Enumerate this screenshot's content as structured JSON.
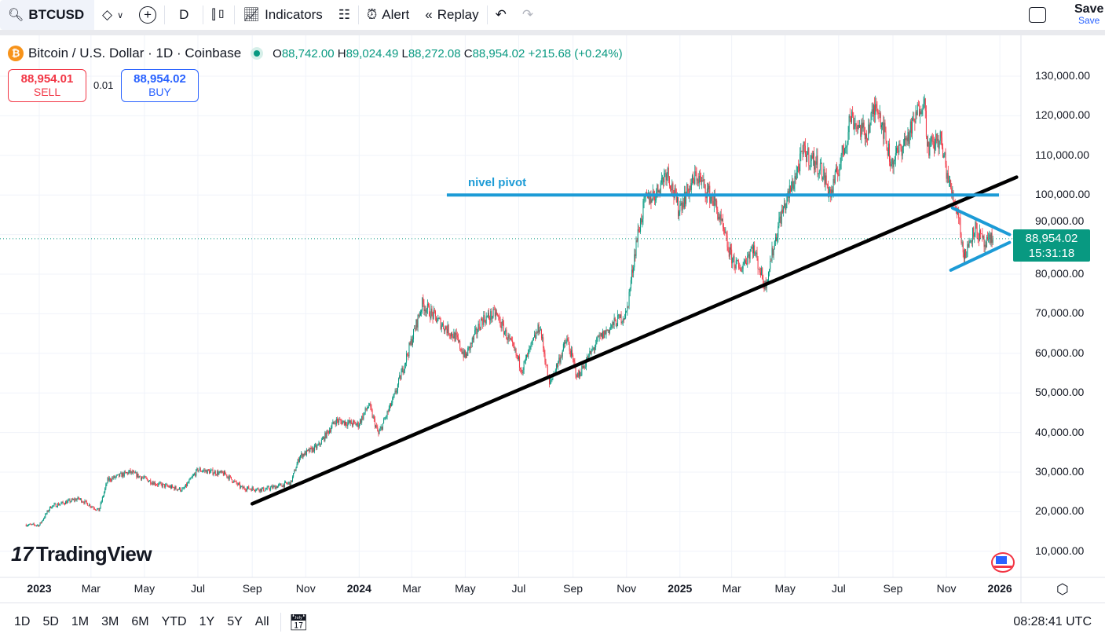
{
  "toolbar": {
    "symbol": "BTCUSD",
    "interval": "D",
    "indicators": "Indicators",
    "alert": "Alert",
    "replay": "Replay",
    "save": "Save",
    "save_sub": "Save"
  },
  "legend": {
    "title": "Bitcoin / U.S. Dollar · 1D · Coinbase",
    "o_label": "O",
    "o": "88,742.00",
    "h_label": "H",
    "h": "89,024.49",
    "l_label": "L",
    "l": "88,272.08",
    "c_label": "C",
    "c": "88,954.02",
    "change": "+215.68 (+0.24%)"
  },
  "trade": {
    "sell_price": "88,954.01",
    "sell": "SELL",
    "spread": "0.01",
    "buy_price": "88,954.02",
    "buy": "BUY"
  },
  "price_label": {
    "price": "88,954.02",
    "countdown": "15:31:18"
  },
  "bottom": {
    "ranges": [
      "1D",
      "5D",
      "1M",
      "3M",
      "6M",
      "YTD",
      "1Y",
      "5Y",
      "All"
    ],
    "clock": "08:28:41 UTC"
  },
  "logo": "TradingView",
  "colors": {
    "up": "#089981",
    "down": "#f23645",
    "trend": "#000000",
    "pivot": "#1c9bd6"
  },
  "chart_data": {
    "type": "candlestick",
    "title": "Bitcoin / U.S. Dollar · 1D · Coinbase",
    "ylim": [
      0,
      135000
    ],
    "yticks": [
      "130,000.00",
      "120,000.00",
      "110,000.00",
      "100,000.00",
      "90,000.00",
      "80,000.00",
      "70,000.00",
      "60,000.00",
      "50,000.00",
      "40,000.00",
      "30,000.00",
      "20,000.00",
      "10,000.00"
    ],
    "xticks": [
      {
        "label": "2023",
        "date": "2023-01-01",
        "bold": true
      },
      {
        "label": "Mar",
        "date": "2023-03-01"
      },
      {
        "label": "May",
        "date": "2023-05-01"
      },
      {
        "label": "Jul",
        "date": "2023-07-01"
      },
      {
        "label": "Sep",
        "date": "2023-09-01"
      },
      {
        "label": "Nov",
        "date": "2023-11-01"
      },
      {
        "label": "2024",
        "date": "2024-01-01",
        "bold": true
      },
      {
        "label": "Mar",
        "date": "2024-03-01"
      },
      {
        "label": "May",
        "date": "2024-05-01"
      },
      {
        "label": "Jul",
        "date": "2024-07-01"
      },
      {
        "label": "Sep",
        "date": "2024-09-01"
      },
      {
        "label": "Nov",
        "date": "2024-11-01"
      },
      {
        "label": "2025",
        "date": "2025-01-01",
        "bold": true
      },
      {
        "label": "Mar",
        "date": "2025-03-01"
      },
      {
        "label": "May",
        "date": "2025-05-01"
      },
      {
        "label": "Jul",
        "date": "2025-07-01"
      },
      {
        "label": "Sep",
        "date": "2025-09-01"
      },
      {
        "label": "Nov",
        "date": "2025-11-01"
      },
      {
        "label": "2026",
        "date": "2026-01-01",
        "bold": true
      }
    ],
    "price_path": [
      [
        "2022-12-17",
        16700
      ],
      [
        "2023-01-01",
        16600
      ],
      [
        "2023-01-14",
        21300
      ],
      [
        "2023-02-15",
        23300
      ],
      [
        "2023-03-10",
        20300
      ],
      [
        "2023-03-20",
        28000
      ],
      [
        "2023-04-14",
        30000
      ],
      [
        "2023-05-15",
        27000
      ],
      [
        "2023-06-14",
        25500
      ],
      [
        "2023-07-01",
        30600
      ],
      [
        "2023-08-01",
        29500
      ],
      [
        "2023-08-20",
        26000
      ],
      [
        "2023-09-15",
        25600
      ],
      [
        "2023-10-15",
        27300
      ],
      [
        "2023-10-25",
        34000
      ],
      [
        "2023-11-15",
        36500
      ],
      [
        "2023-12-05",
        43000
      ],
      [
        "2023-12-31",
        42000
      ],
      [
        "2024-01-12",
        47000
      ],
      [
        "2024-01-23",
        39500
      ],
      [
        "2024-02-10",
        49000
      ],
      [
        "2024-02-28",
        62000
      ],
      [
        "2024-03-13",
        72500
      ],
      [
        "2024-04-01",
        68000
      ],
      [
        "2024-04-20",
        64000
      ],
      [
        "2024-05-01",
        59000
      ],
      [
        "2024-05-20",
        68500
      ],
      [
        "2024-06-05",
        70000
      ],
      [
        "2024-06-25",
        61000
      ],
      [
        "2024-07-05",
        56000
      ],
      [
        "2024-07-25",
        67000
      ],
      [
        "2024-08-05",
        52000
      ],
      [
        "2024-08-25",
        63500
      ],
      [
        "2024-09-06",
        54000
      ],
      [
        "2024-09-30",
        63500
      ],
      [
        "2024-10-20",
        68000
      ],
      [
        "2024-11-01",
        70000
      ],
      [
        "2024-11-12",
        88000
      ],
      [
        "2024-11-22",
        98500
      ],
      [
        "2024-12-05",
        100500
      ],
      [
        "2024-12-17",
        106500
      ],
      [
        "2024-12-30",
        96500
      ],
      [
        "2025-01-20",
        105000
      ],
      [
        "2025-02-10",
        98000
      ],
      [
        "2025-02-27",
        85000
      ],
      [
        "2025-03-10",
        81000
      ],
      [
        "2025-03-25",
        87000
      ],
      [
        "2025-04-08",
        77000
      ],
      [
        "2025-04-25",
        94000
      ],
      [
        "2025-05-10",
        103000
      ],
      [
        "2025-05-22",
        111000
      ],
      [
        "2025-06-10",
        107000
      ],
      [
        "2025-06-22",
        100000
      ],
      [
        "2025-07-10",
        114000
      ],
      [
        "2025-07-14",
        120000
      ],
      [
        "2025-08-01",
        115000
      ],
      [
        "2025-08-14",
        123500
      ],
      [
        "2025-08-30",
        108000
      ],
      [
        "2025-09-20",
        115500
      ],
      [
        "2025-10-06",
        125000
      ],
      [
        "2025-10-11",
        112000
      ],
      [
        "2025-10-25",
        114000
      ],
      [
        "2025-11-05",
        102000
      ],
      [
        "2025-11-15",
        95000
      ],
      [
        "2025-11-21",
        84000
      ],
      [
        "2025-12-03",
        92000
      ],
      [
        "2025-12-15",
        87000
      ],
      [
        "2025-12-24",
        88954
      ]
    ],
    "last_price": 88954.02,
    "drawings": [
      {
        "type": "trendline",
        "color": "#000000",
        "from": [
          "2023-09-01",
          22000
        ],
        "to": [
          "2026-01-20",
          104500
        ]
      },
      {
        "type": "horizontal",
        "color": "#1c9bd6",
        "price": 100000,
        "from": "2024-04-10",
        "to": "2025-12-31",
        "label": "nivel pivot"
      },
      {
        "type": "trendline",
        "color": "#1c9bd6",
        "from": [
          "2025-11-08",
          96700
        ],
        "to": [
          "2026-01-12",
          90000
        ]
      },
      {
        "type": "trendline",
        "color": "#1c9bd6",
        "from": [
          "2025-11-06",
          81000
        ],
        "to": [
          "2026-01-12",
          88000
        ]
      }
    ]
  }
}
